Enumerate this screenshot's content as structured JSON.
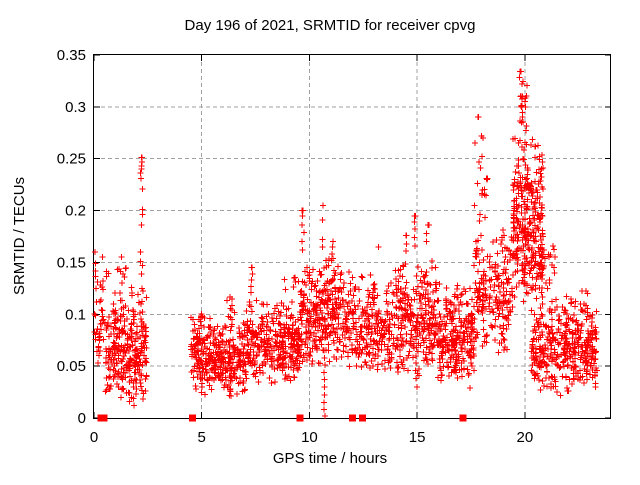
{
  "window": {
    "background": "#ffffff"
  },
  "chart_data": {
    "type": "scatter",
    "title": "Day 196 of 2021, SRMTID for receiver cpvg",
    "xlabel": "GPS time / hours",
    "ylabel": "SRMTID / TECUs",
    "xlim": [
      0,
      24
    ],
    "ylim": [
      0,
      0.35
    ],
    "xtick_values": [
      0,
      5,
      10,
      15,
      20
    ],
    "xtick_labels": [
      "0",
      "5",
      "10",
      "15",
      "20"
    ],
    "ytick_values": [
      0,
      0.05,
      0.1,
      0.15,
      0.2,
      0.25,
      0.3,
      0.35
    ],
    "ytick_labels": [
      "0",
      "0.05",
      "0.1",
      "0.15",
      "0.2",
      "0.25",
      "0.3",
      "0.35"
    ],
    "grid": true,
    "grid_style": "dashed",
    "legend": null,
    "marker": {
      "glyph": "plus",
      "size": 7,
      "color": "#ff0000"
    },
    "grid_color": "#a0a0a0",
    "axis_color": "#000000",
    "max_point": {
      "x": 19.83,
      "y": 0.334
    },
    "data_gap_hours": [
      2.5,
      4.5
    ],
    "zero_markers_x": [
      0.32,
      0.47,
      4.57,
      9.57,
      12.0,
      12.47,
      17.12
    ],
    "notable_points": [
      [
        0.05,
        0.16
      ],
      [
        2.21,
        0.251
      ],
      [
        7.32,
        0.145
      ],
      [
        9.7,
        0.2
      ],
      [
        10.63,
        0.205
      ],
      [
        13.2,
        0.165
      ],
      [
        14.5,
        0.176
      ],
      [
        14.92,
        0.195
      ],
      [
        15.5,
        0.186
      ],
      [
        17.85,
        0.29
      ],
      [
        18.05,
        0.27
      ],
      [
        19.83,
        0.334
      ],
      [
        19.9,
        0.31
      ],
      [
        20.02,
        0.3
      ],
      [
        20.5,
        0.262
      ],
      [
        21.4,
        0.155
      ],
      [
        22.9,
        0.12
      ]
    ],
    "density_bands": [
      {
        "x0": 0.02,
        "x1": 0.45,
        "n": 40,
        "ymin": 0.04,
        "ymax": 0.162,
        "peak": 0.45
      },
      {
        "x0": 0.45,
        "x1": 2.45,
        "n": 290,
        "ymin": 0.012,
        "ymax": 0.128,
        "peak": 0.38
      },
      {
        "x0": 0.5,
        "x1": 1.5,
        "n": 12,
        "ymin": 0.125,
        "ymax": 0.162,
        "peak": 0.5
      },
      {
        "x0": 4.5,
        "x1": 7.05,
        "n": 340,
        "ymin": 0.018,
        "ymax": 0.1,
        "peak": 0.45
      },
      {
        "x0": 4.85,
        "x1": 5.15,
        "n": 5,
        "ymin": 0.09,
        "ymax": 0.107,
        "peak": 0.5
      },
      {
        "x0": 6.15,
        "x1": 6.55,
        "n": 8,
        "ymin": 0.095,
        "ymax": 0.125,
        "peak": 0.5
      },
      {
        "x0": 7.05,
        "x1": 9.55,
        "n": 320,
        "ymin": 0.03,
        "ymax": 0.118,
        "peak": 0.45
      },
      {
        "x0": 8.85,
        "x1": 9.5,
        "n": 8,
        "ymin": 0.115,
        "ymax": 0.14,
        "peak": 0.5
      },
      {
        "x0": 9.55,
        "x1": 10.5,
        "n": 140,
        "ymin": 0.045,
        "ymax": 0.152,
        "peak": 0.45
      },
      {
        "x0": 10.5,
        "x1": 11.5,
        "n": 140,
        "ymin": 0.05,
        "ymax": 0.158,
        "peak": 0.45
      },
      {
        "x0": 11.5,
        "x1": 14.0,
        "n": 260,
        "ymin": 0.04,
        "ymax": 0.148,
        "peak": 0.42
      },
      {
        "x0": 14.0,
        "x1": 16.05,
        "n": 280,
        "ymin": 0.032,
        "ymax": 0.155,
        "peak": 0.42
      },
      {
        "x0": 16.05,
        "x1": 17.65,
        "n": 230,
        "ymin": 0.025,
        "ymax": 0.135,
        "peak": 0.45
      },
      {
        "x0": 17.65,
        "x1": 19.45,
        "n": 200,
        "ymin": 0.055,
        "ymax": 0.185,
        "peak": 0.45
      },
      {
        "x0": 17.95,
        "x1": 18.35,
        "n": 8,
        "ymin": 0.19,
        "ymax": 0.245,
        "peak": 0.4
      },
      {
        "x0": 19.45,
        "x1": 20.85,
        "n": 310,
        "ymin": 0.105,
        "ymax": 0.275,
        "peak": 0.45
      },
      {
        "x0": 19.7,
        "x1": 20.15,
        "n": 14,
        "ymin": 0.275,
        "ymax": 0.335,
        "peak": 0.35
      },
      {
        "x0": 20.65,
        "x1": 21.5,
        "n": 28,
        "ymin": 0.1,
        "ymax": 0.18,
        "peak": 0.35
      },
      {
        "x0": 20.3,
        "x1": 23.35,
        "n": 400,
        "ymin": 0.02,
        "ymax": 0.115,
        "peak": 0.5
      },
      {
        "x0": 21.9,
        "x1": 23.15,
        "n": 8,
        "ymin": 0.095,
        "ymax": 0.125,
        "peak": 0.5
      }
    ],
    "spike_columns": [
      {
        "x": 2.21,
        "w": 0.12,
        "ys": [
          0.251,
          0.247,
          0.243,
          0.24,
          0.236,
          0.231,
          0.221,
          0.201,
          0.196,
          0.186,
          0.16,
          0.151,
          0.147,
          0.139,
          0.125,
          0.11
        ]
      },
      {
        "x": 7.32,
        "w": 0.1,
        "ys": [
          0.145,
          0.139,
          0.133,
          0.127,
          0.121
        ]
      },
      {
        "x": 9.7,
        "w": 0.1,
        "ys": [
          0.2,
          0.195,
          0.186,
          0.179,
          0.17,
          0.162
        ]
      },
      {
        "x": 10.63,
        "w": 0.1,
        "ys": [
          0.205,
          0.191,
          0.172,
          0.165
        ]
      },
      {
        "x": 11.05,
        "w": 0.12,
        "ys": [
          0.17,
          0.165,
          0.158,
          0.152
        ]
      },
      {
        "x": 14.5,
        "w": 0.1,
        "ys": [
          0.176,
          0.168,
          0.161
        ]
      },
      {
        "x": 14.92,
        "w": 0.12,
        "ys": [
          0.195,
          0.189,
          0.182,
          0.174,
          0.166
        ]
      },
      {
        "x": 15.5,
        "w": 0.15,
        "ys": [
          0.186,
          0.178,
          0.17
        ]
      },
      {
        "x": 17.85,
        "w": 0.45,
        "ys": [
          0.29,
          0.272,
          0.265,
          0.252,
          0.247,
          0.241,
          0.226,
          0.22,
          0.215,
          0.205,
          0.196,
          0.19,
          0.176,
          0.17,
          0.162,
          0.155,
          0.147
        ]
      },
      {
        "x": 19.83,
        "w": 0.15,
        "ys": [
          0.334,
          0.322,
          0.31,
          0.301,
          0.3,
          0.29,
          0.285
        ]
      },
      {
        "x": 20.5,
        "w": 0.1,
        "ys": [
          0.262,
          0.251
        ]
      },
      {
        "x": 10.7,
        "w": 0.08,
        "ys": [
          0.002,
          0.008,
          0.015,
          0.022,
          0.03,
          0.037,
          0.044,
          0.051,
          0.058,
          0.065
        ]
      },
      {
        "x": 14.95,
        "w": 0.08,
        "ys": [
          0.03,
          0.038,
          0.046,
          0.053,
          0.06,
          0.068
        ]
      },
      {
        "x": 1.75,
        "w": 0.3,
        "ys": [
          0.012,
          0.016,
          0.02,
          0.024
        ]
      }
    ]
  }
}
